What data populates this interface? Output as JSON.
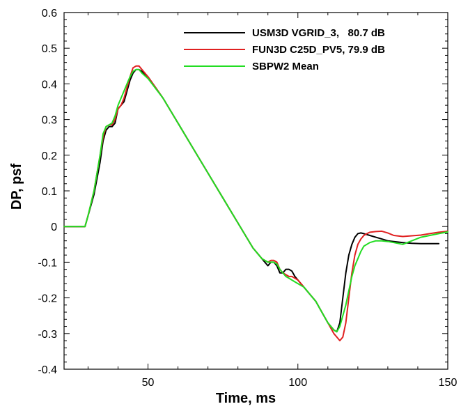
{
  "chart_data": {
    "type": "line",
    "title": "",
    "xlabel": "Time, ms",
    "ylabel": "DP, psf",
    "xlim": [
      22,
      150
    ],
    "ylim": [
      -0.4,
      0.6
    ],
    "x_ticks": [
      50,
      100,
      150
    ],
    "x_tick_labels": [
      "50",
      "100",
      "150"
    ],
    "y_ticks": [
      -0.4,
      -0.3,
      -0.2,
      -0.1,
      0,
      0.1,
      0.2,
      0.3,
      0.4,
      0.5,
      0.6
    ],
    "y_tick_labels": [
      "-0.4",
      "-0.3",
      "-0.2",
      "-0.1",
      "0",
      "0.1",
      "0.2",
      "0.3",
      "0.4",
      "0.5",
      "0.6"
    ],
    "grid": false,
    "legend_position": "top-right",
    "series": [
      {
        "name": "USM3D VGRID_3,   80.7 dB",
        "color": "#000000",
        "x": [
          22,
          28,
          29,
          30,
          32,
          34,
          35,
          36,
          37,
          38,
          39,
          40,
          41,
          42,
          43,
          44,
          45,
          46,
          47,
          48,
          50,
          55,
          60,
          65,
          70,
          75,
          80,
          85,
          88,
          90,
          91,
          92,
          93,
          94,
          95,
          96,
          97,
          98,
          99,
          100,
          102,
          104,
          106,
          108,
          110,
          112,
          113,
          114,
          115,
          116,
          117,
          118,
          119,
          120,
          121,
          122,
          124,
          126,
          128,
          130,
          132,
          135,
          138,
          141,
          144,
          147
        ],
        "y": [
          0,
          0,
          0,
          0.03,
          0.09,
          0.18,
          0.24,
          0.27,
          0.28,
          0.28,
          0.29,
          0.33,
          0.34,
          0.35,
          0.38,
          0.41,
          0.43,
          0.44,
          0.44,
          0.435,
          0.42,
          0.36,
          0.29,
          0.22,
          0.15,
          0.08,
          0.01,
          -0.06,
          -0.09,
          -0.11,
          -0.1,
          -0.1,
          -0.11,
          -0.13,
          -0.13,
          -0.12,
          -0.12,
          -0.125,
          -0.14,
          -0.15,
          -0.17,
          -0.19,
          -0.21,
          -0.24,
          -0.27,
          -0.29,
          -0.295,
          -0.27,
          -0.2,
          -0.13,
          -0.08,
          -0.05,
          -0.03,
          -0.02,
          -0.018,
          -0.02,
          -0.025,
          -0.03,
          -0.035,
          -0.04,
          -0.042,
          -0.045,
          -0.047,
          -0.048,
          -0.048,
          -0.048
        ]
      },
      {
        "name": "FUN3D C25D_PV5, 79.9 dB",
        "color": "#e02020",
        "x": [
          22,
          28,
          29,
          30,
          32,
          34,
          35,
          36,
          37,
          38,
          39,
          40,
          41,
          42,
          43,
          44,
          45,
          46,
          47,
          48,
          50,
          55,
          60,
          65,
          70,
          75,
          80,
          85,
          88,
          90,
          91,
          92,
          93,
          94,
          95,
          96,
          97,
          98,
          99,
          100,
          102,
          104,
          106,
          108,
          110,
          112,
          113,
          114,
          115,
          116,
          117,
          118,
          119,
          120,
          121,
          122,
          123,
          124,
          125,
          126,
          128,
          130,
          132,
          135,
          138,
          141,
          144,
          147,
          150
        ],
        "y": [
          0,
          0,
          0,
          0.03,
          0.1,
          0.2,
          0.25,
          0.28,
          0.285,
          0.285,
          0.3,
          0.33,
          0.34,
          0.36,
          0.39,
          0.42,
          0.445,
          0.45,
          0.45,
          0.44,
          0.42,
          0.36,
          0.29,
          0.22,
          0.15,
          0.08,
          0.01,
          -0.06,
          -0.09,
          -0.1,
          -0.095,
          -0.095,
          -0.1,
          -0.12,
          -0.13,
          -0.135,
          -0.14,
          -0.14,
          -0.145,
          -0.15,
          -0.17,
          -0.19,
          -0.21,
          -0.24,
          -0.27,
          -0.3,
          -0.31,
          -0.32,
          -0.31,
          -0.27,
          -0.2,
          -0.13,
          -0.08,
          -0.05,
          -0.035,
          -0.025,
          -0.02,
          -0.016,
          -0.015,
          -0.014,
          -0.013,
          -0.018,
          -0.025,
          -0.028,
          -0.026,
          -0.024,
          -0.02,
          -0.016,
          -0.013
        ]
      },
      {
        "name": "SBPW2 Mean",
        "color": "#22dd22",
        "x": [
          22,
          28,
          29,
          30,
          32,
          34,
          35,
          36,
          37,
          38,
          39,
          40,
          41,
          42,
          43,
          44,
          45,
          46,
          47,
          48,
          50,
          55,
          60,
          65,
          70,
          75,
          80,
          85,
          88,
          90,
          91,
          92,
          93,
          94,
          95,
          96,
          97,
          98,
          99,
          100,
          102,
          104,
          106,
          108,
          110,
          112,
          113,
          114,
          115,
          116,
          117,
          118,
          119,
          120,
          121,
          122,
          124,
          126,
          128,
          130,
          132,
          135,
          138,
          141,
          144,
          147,
          150
        ],
        "y": [
          0,
          0,
          0,
          0.03,
          0.1,
          0.2,
          0.26,
          0.28,
          0.285,
          0.29,
          0.31,
          0.34,
          0.36,
          0.38,
          0.4,
          0.42,
          0.435,
          0.44,
          0.44,
          0.43,
          0.415,
          0.36,
          0.29,
          0.22,
          0.15,
          0.08,
          0.01,
          -0.06,
          -0.09,
          -0.1,
          -0.1,
          -0.1,
          -0.105,
          -0.12,
          -0.13,
          -0.14,
          -0.145,
          -0.15,
          -0.155,
          -0.16,
          -0.17,
          -0.19,
          -0.21,
          -0.24,
          -0.27,
          -0.29,
          -0.295,
          -0.28,
          -0.25,
          -0.22,
          -0.18,
          -0.14,
          -0.11,
          -0.09,
          -0.07,
          -0.055,
          -0.045,
          -0.04,
          -0.04,
          -0.042,
          -0.045,
          -0.05,
          -0.04,
          -0.03,
          -0.025,
          -0.02,
          -0.015
        ]
      }
    ]
  }
}
